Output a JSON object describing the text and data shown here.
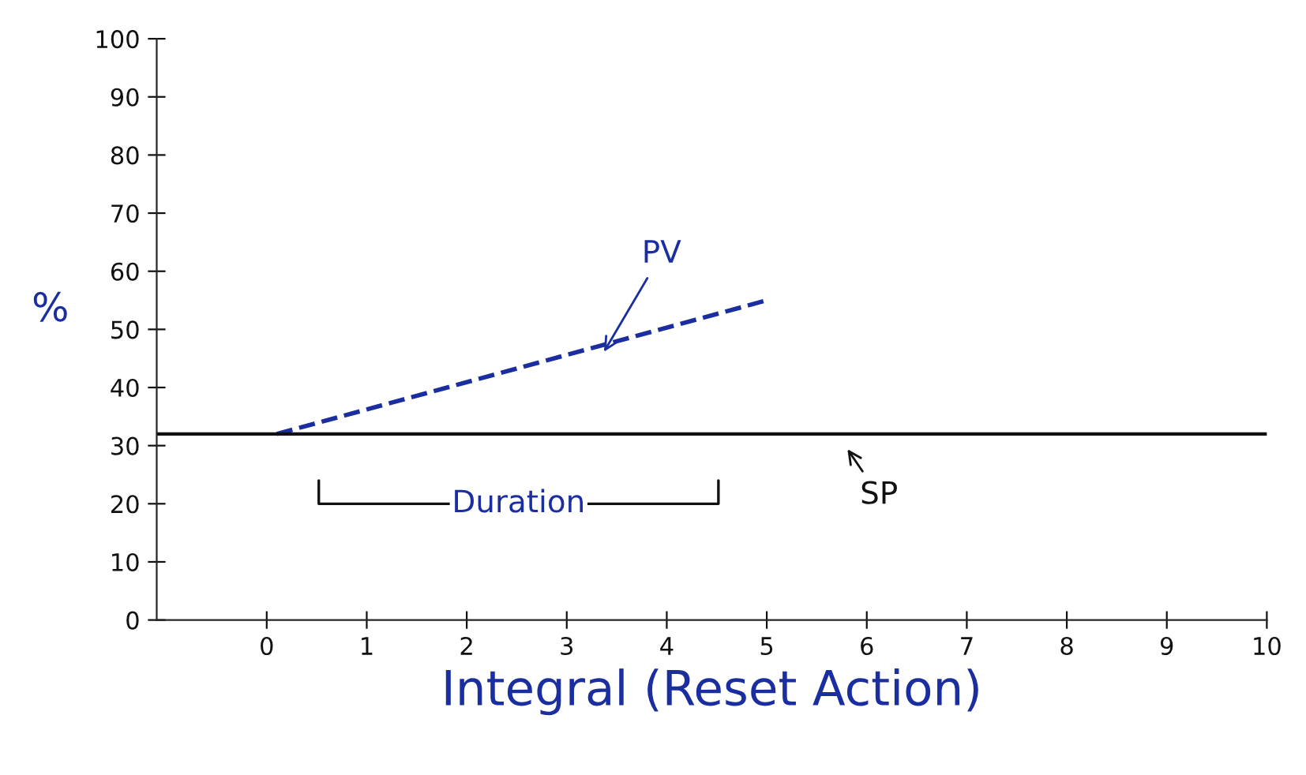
{
  "chart_data": {
    "type": "line",
    "xlabel": "Integral (Reset Action)",
    "ylabel": "%",
    "xlim": [
      -1.1,
      10
    ],
    "xticks": [
      0,
      1,
      2,
      3,
      4,
      5,
      6,
      7,
      8,
      9,
      10
    ],
    "ylim": [
      0,
      100
    ],
    "yticks": [
      0,
      10,
      20,
      30,
      40,
      50,
      60,
      70,
      80,
      90,
      100
    ],
    "series": [
      {
        "name": "PV",
        "color": "#1a2ea0",
        "x": [
          0.1,
          5
        ],
        "values": [
          32,
          55
        ],
        "line_style": "dashed"
      }
    ],
    "ref_lines": [
      {
        "axis": "y",
        "value": 32,
        "label": "SP",
        "color": "#111111"
      }
    ],
    "annotations": [
      "Duration"
    ],
    "grid": false
  }
}
